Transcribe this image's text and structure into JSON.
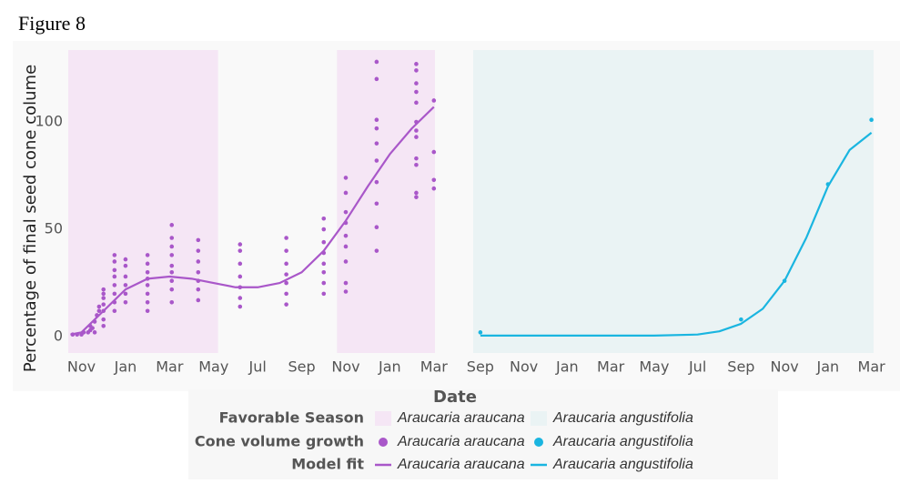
{
  "title": "Figure 8",
  "x_label": "Date",
  "y_label": "Percentage of final seed cone colume",
  "legend_titles": [
    "Favorable Season",
    "Cone volume growth",
    "Model fit"
  ],
  "chart_data": [
    {
      "type": "scatter",
      "xlim": [
        -0.6,
        16.05
      ],
      "ylim": [
        -7.6,
        133.5
      ],
      "xticks": [
        {
          "value": 0,
          "label": "Nov"
        },
        {
          "value": 2,
          "label": "Jan"
        },
        {
          "value": 4,
          "label": "Mar"
        },
        {
          "value": 6,
          "label": "May"
        },
        {
          "value": 8,
          "label": "Jul"
        },
        {
          "value": 10,
          "label": "Sep"
        },
        {
          "value": 12,
          "label": "Nov"
        },
        {
          "value": 14,
          "label": "Jan"
        },
        {
          "value": 16,
          "label": "Mar"
        }
      ],
      "yticks": [
        0,
        50,
        100
      ],
      "regions": [
        {
          "name": "Araucaria araucana",
          "color": "#f5e6f5",
          "x": [
            -0.6,
            6.2
          ]
        },
        {
          "color": "#f5e6f5",
          "x": [
            11.6,
            16.05
          ]
        }
      ],
      "series": [
        {
          "name": "Araucaria araucana",
          "type": "scatter",
          "color": "#a957c9",
          "x": [
            -0.4,
            -0.2,
            0,
            0.1,
            0.3,
            0.4,
            0.4,
            0.5,
            0.6,
            0.6,
            0.7,
            0.8,
            0.8,
            1,
            1,
            1,
            1,
            1,
            1,
            1,
            1.5,
            1.5,
            1.5,
            1.5,
            1.5,
            1.5,
            1.5,
            1.5,
            2,
            2,
            2,
            2,
            2,
            2,
            3,
            3,
            3,
            3,
            3,
            3,
            3,
            3,
            4.1,
            4.1,
            4.1,
            4.1,
            4.1,
            4.1,
            4.1,
            4.1,
            4.1,
            5.3,
            5.3,
            5.3,
            5.3,
            5.3,
            5.3,
            5.3,
            7.2,
            7.2,
            7.2,
            7.2,
            7.2,
            7.2,
            7.2,
            9.3,
            9.3,
            9.3,
            9.3,
            9.3,
            9.3,
            9.3,
            11,
            11,
            11,
            11,
            11,
            11,
            11,
            11,
            12,
            12,
            12,
            12,
            12,
            12,
            12,
            12,
            12,
            13.4,
            13.4,
            13.4,
            13.4,
            13.4,
            13.4,
            13.4,
            13.4,
            13.4,
            13.4,
            15.2,
            15.2,
            15.2,
            15.2,
            15.2,
            15.2,
            15.2,
            15.2,
            15.2,
            15.2,
            15.2,
            15.2,
            16,
            16,
            16,
            16
          ],
          "values": [
            1,
            1,
            1,
            2,
            2,
            3,
            5,
            4,
            7,
            2,
            10,
            12,
            14,
            5,
            8,
            12,
            15,
            18,
            20,
            22,
            12,
            16,
            20,
            24,
            28,
            31,
            35,
            38,
            16,
            20,
            24,
            28,
            33,
            36,
            12,
            16,
            20,
            24,
            27,
            30,
            34,
            38,
            16,
            22,
            26,
            30,
            33,
            38,
            42,
            46,
            52,
            17,
            22,
            26,
            30,
            35,
            40,
            45,
            14,
            18,
            23,
            28,
            34,
            40,
            43,
            15,
            20,
            25,
            29,
            34,
            40,
            46,
            20,
            25,
            30,
            34,
            39,
            44,
            50,
            55,
            21,
            25,
            35,
            42,
            47,
            53,
            58,
            67,
            74,
            40,
            51,
            62,
            72,
            82,
            90,
            97,
            101,
            120,
            128,
            65,
            67,
            80,
            83,
            93,
            96,
            100,
            109,
            114,
            118,
            124,
            127,
            69,
            73,
            86,
            110
          ]
        },
        {
          "name": "Araucaria araucana",
          "type": "line",
          "color": "#a957c9",
          "x": [
            -0.5,
            0,
            1,
            2,
            3,
            4,
            5,
            6,
            7,
            8,
            9,
            10,
            11,
            12,
            13,
            14,
            15,
            16
          ],
          "values": [
            1,
            2,
            12,
            22,
            27,
            28,
            27,
            25,
            23,
            23,
            25,
            30,
            40,
            54,
            70,
            85,
            97,
            107
          ]
        }
      ]
    },
    {
      "type": "scatter",
      "xlim": [
        -0.33,
        18.1
      ],
      "ylim": [
        -7.6,
        133.5
      ],
      "xticks": [
        {
          "value": 0,
          "label": "Sep"
        },
        {
          "value": 2,
          "label": "Nov"
        },
        {
          "value": 4,
          "label": "Jan"
        },
        {
          "value": 6,
          "label": "Mar"
        },
        {
          "value": 8,
          "label": "May"
        },
        {
          "value": 10,
          "label": "Jul"
        },
        {
          "value": 12,
          "label": "Sep"
        },
        {
          "value": 14,
          "label": "Nov"
        },
        {
          "value": 16,
          "label": "Jan"
        },
        {
          "value": 18,
          "label": "Mar"
        }
      ],
      "regions": [
        {
          "name": "Araucaria angustifolia",
          "color": "#eaf3f4",
          "x": [
            -0.33,
            18.1
          ]
        }
      ],
      "series": [
        {
          "name": "Araucaria angustifolia",
          "type": "scatter",
          "color": "#1ab5e0",
          "x": [
            0,
            12,
            14,
            16,
            18
          ],
          "values": [
            2,
            8,
            26,
            71,
            101
          ]
        },
        {
          "name": "Araucaria angustifolia",
          "type": "line",
          "color": "#1ab5e0",
          "x": [
            0,
            4,
            8,
            10,
            11,
            12,
            13,
            14,
            15,
            16,
            17,
            18
          ],
          "values": [
            0.5,
            0.5,
            0.5,
            1,
            2.5,
            6,
            13,
            26,
            46,
            70,
            87,
            95
          ]
        }
      ]
    }
  ]
}
